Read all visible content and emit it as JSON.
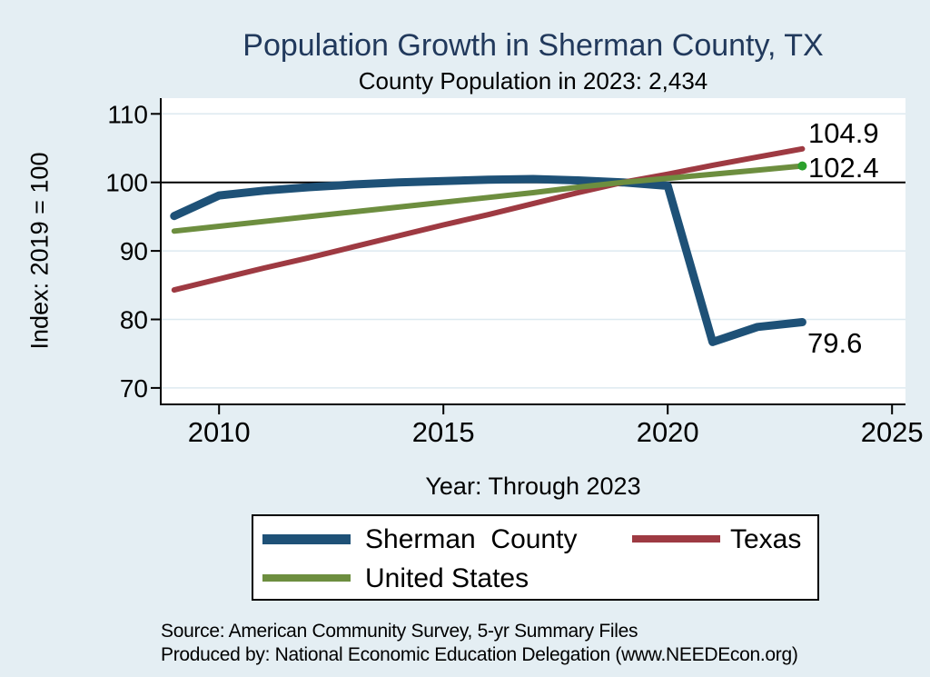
{
  "page": {
    "background": "#e4eef3"
  },
  "chart_data": {
    "type": "line",
    "title": "Population Growth in Sherman County, TX",
    "subtitle": "County Population in 2023: 2,434",
    "xlabel": "Year: Through 2023",
    "ylabel": "Index: 2019 = 100",
    "x": [
      2009,
      2010,
      2011,
      2012,
      2013,
      2014,
      2015,
      2016,
      2017,
      2018,
      2019,
      2020,
      2021,
      2022,
      2023
    ],
    "series": [
      {
        "name": "Sherman  County",
        "color": "#1e5177",
        "width": 9,
        "values": [
          95.1,
          98.1,
          98.8,
          99.3,
          99.7,
          100.0,
          100.2,
          100.4,
          100.5,
          100.3,
          100.0,
          99.5,
          76.7,
          78.9,
          79.6
        ],
        "end_label": "79.6"
      },
      {
        "name": "Texas",
        "color": "#9e3a42",
        "width": 6,
        "values": [
          84.3,
          85.9,
          87.5,
          89.0,
          90.6,
          92.2,
          93.8,
          95.3,
          96.9,
          98.5,
          100.0,
          101.2,
          102.5,
          103.7,
          104.9
        ],
        "end_label": "104.9"
      },
      {
        "name": "United States",
        "color": "#6d8e3f",
        "width": 6,
        "values": [
          92.9,
          93.6,
          94.3,
          95.0,
          95.7,
          96.4,
          97.1,
          97.8,
          98.5,
          99.3,
          100.0,
          100.6,
          101.2,
          101.8,
          102.4
        ],
        "end_label": "102.4",
        "end_marker_color": "#2ca02c"
      }
    ],
    "xticks": [
      2010,
      2015,
      2020,
      2025
    ],
    "yticks": [
      110,
      100,
      90,
      80,
      70
    ],
    "xlim": [
      2008.7,
      2025.3
    ],
    "ylim": [
      67.6,
      112.3
    ],
    "reference_line_y": 100,
    "grid": true,
    "legend_position": "bottom",
    "plot_background": "#ffffff"
  },
  "footer": {
    "source": "Source: American Community Survey, 5-yr Summary Files",
    "produced_by": "Produced by: National Economic Education Delegation (www.NEEDEcon.org)"
  }
}
